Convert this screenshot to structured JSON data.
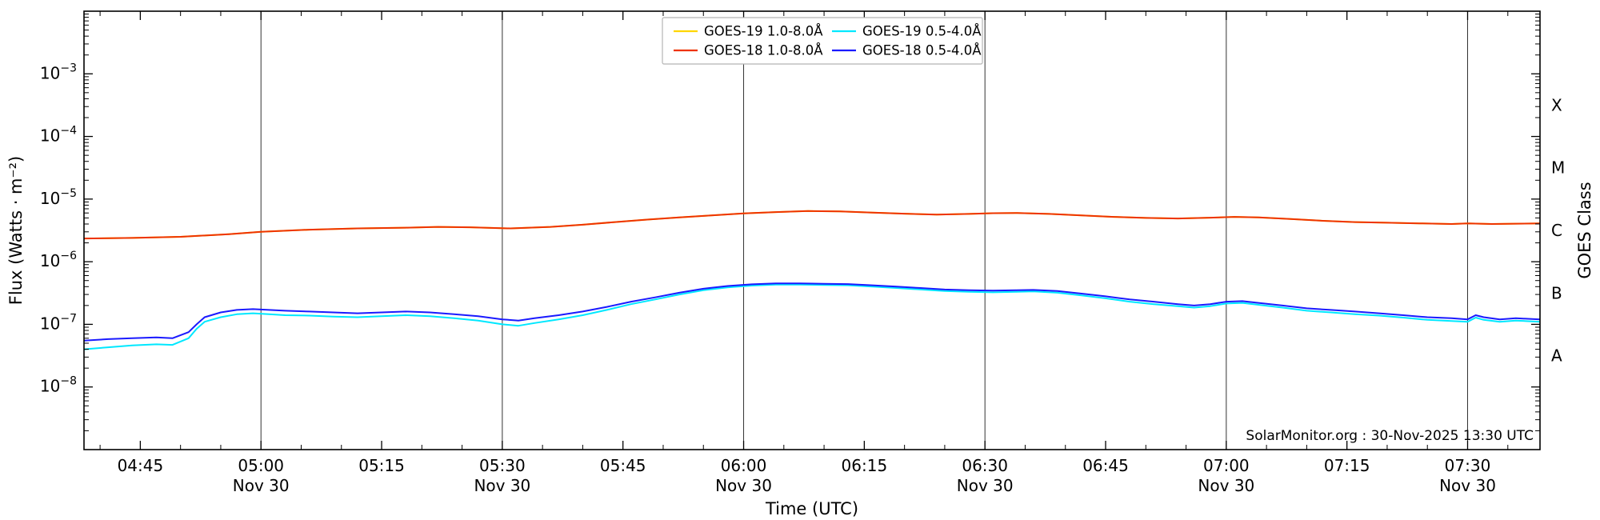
{
  "chart_data": {
    "type": "line",
    "title": "",
    "xlabel": "Time (UTC)",
    "ylabel": "Flux (Watts · m⁻²)",
    "ylabel_right": "GOES Class",
    "annotation": "SolarMonitor.org : 30-Nov-2025 13:30 UTC",
    "x_unit": "minutes since midnight UTC on 30-Nov-2025",
    "xlim": [
      278,
      459
    ],
    "ylog10_lim": [
      -9,
      -2
    ],
    "x_minor_step": 5,
    "x_major_ticks": [
      {
        "t": 285,
        "label": "04:45",
        "date": ""
      },
      {
        "t": 300,
        "label": "05:00",
        "date": "Nov 30"
      },
      {
        "t": 315,
        "label": "05:15",
        "date": ""
      },
      {
        "t": 330,
        "label": "05:30",
        "date": "Nov 30"
      },
      {
        "t": 345,
        "label": "05:45",
        "date": ""
      },
      {
        "t": 360,
        "label": "06:00",
        "date": "Nov 30"
      },
      {
        "t": 375,
        "label": "06:15",
        "date": ""
      },
      {
        "t": 390,
        "label": "06:30",
        "date": "Nov 30"
      },
      {
        "t": 405,
        "label": "06:45",
        "date": ""
      },
      {
        "t": 420,
        "label": "07:00",
        "date": "Nov 30"
      },
      {
        "t": 435,
        "label": "07:15",
        "date": ""
      },
      {
        "t": 450,
        "label": "07:30",
        "date": "Nov 30"
      }
    ],
    "y_major_ticks": [
      {
        "exp": -8,
        "label": "10⁻⁸"
      },
      {
        "exp": -7,
        "label": "10⁻⁷"
      },
      {
        "exp": -6,
        "label": "10⁻⁶"
      },
      {
        "exp": -5,
        "label": "10⁻⁵"
      },
      {
        "exp": -4,
        "label": "10⁻⁴"
      },
      {
        "exp": -3,
        "label": "10⁻³"
      }
    ],
    "goes_class_labels": [
      {
        "label": "A",
        "log10_flux": -7.5
      },
      {
        "label": "B",
        "log10_flux": -6.5
      },
      {
        "label": "C",
        "log10_flux": -5.5
      },
      {
        "label": "M",
        "log10_flux": -4.5
      },
      {
        "label": "X",
        "log10_flux": -3.5
      }
    ],
    "legend": {
      "entries": [
        {
          "label": "GOES-19 1.0-8.0Å",
          "color": "#ffd600"
        },
        {
          "label": "GOES-18 1.0-8.0Å",
          "color": "#ee3300"
        },
        {
          "label": "GOES-19 0.5-4.0Å",
          "color": "#00e8ff"
        },
        {
          "label": "GOES-18 0.5-4.0Å",
          "color": "#1a1aff"
        }
      ]
    },
    "series": [
      {
        "name": "GOES-19 1.0-8.0Å",
        "color": "#ffd600",
        "points_same_as": 1,
        "note": "hidden beneath GOES-18 1.0-8.0Å trace"
      },
      {
        "name": "GOES-18 1.0-8.0Å",
        "color": "#ee3300",
        "points": [
          [
            278,
            2.35e-06
          ],
          [
            284,
            2.4e-06
          ],
          [
            290,
            2.5e-06
          ],
          [
            296,
            2.75e-06
          ],
          [
            300,
            3e-06
          ],
          [
            306,
            3.25e-06
          ],
          [
            312,
            3.4e-06
          ],
          [
            318,
            3.5e-06
          ],
          [
            322,
            3.6e-06
          ],
          [
            326,
            3.55e-06
          ],
          [
            331,
            3.4e-06
          ],
          [
            336,
            3.6e-06
          ],
          [
            340,
            3.9e-06
          ],
          [
            344,
            4.3e-06
          ],
          [
            348,
            4.7e-06
          ],
          [
            352,
            5.1e-06
          ],
          [
            356,
            5.5e-06
          ],
          [
            360,
            5.9e-06
          ],
          [
            364,
            6.2e-06
          ],
          [
            368,
            6.45e-06
          ],
          [
            372,
            6.35e-06
          ],
          [
            376,
            6.1e-06
          ],
          [
            380,
            5.85e-06
          ],
          [
            384,
            5.65e-06
          ],
          [
            388,
            5.8e-06
          ],
          [
            391,
            5.95e-06
          ],
          [
            394,
            6e-06
          ],
          [
            398,
            5.8e-06
          ],
          [
            402,
            5.5e-06
          ],
          [
            406,
            5.2e-06
          ],
          [
            410,
            5e-06
          ],
          [
            414,
            4.9e-06
          ],
          [
            418,
            5.05e-06
          ],
          [
            421,
            5.2e-06
          ],
          [
            424,
            5.1e-06
          ],
          [
            428,
            4.8e-06
          ],
          [
            432,
            4.5e-06
          ],
          [
            436,
            4.3e-06
          ],
          [
            440,
            4.2e-06
          ],
          [
            444,
            4.1e-06
          ],
          [
            448,
            4e-06
          ],
          [
            450,
            4.1e-06
          ],
          [
            453,
            4e-06
          ],
          [
            456,
            4.05e-06
          ],
          [
            459,
            4.1e-06
          ]
        ]
      },
      {
        "name": "GOES-19 0.5-4.0Å",
        "color": "#00e8ff",
        "points": [
          [
            278,
            4e-08
          ],
          [
            281,
            4.3e-08
          ],
          [
            284,
            4.6e-08
          ],
          [
            287,
            4.8e-08
          ],
          [
            289,
            4.7e-08
          ],
          [
            291,
            6e-08
          ],
          [
            292,
            8.5e-08
          ],
          [
            293,
            1.1e-07
          ],
          [
            295,
            1.3e-07
          ],
          [
            297,
            1.45e-07
          ],
          [
            299,
            1.5e-07
          ],
          [
            301,
            1.45e-07
          ],
          [
            303,
            1.4e-07
          ],
          [
            306,
            1.38e-07
          ],
          [
            309,
            1.33e-07
          ],
          [
            312,
            1.3e-07
          ],
          [
            315,
            1.35e-07
          ],
          [
            318,
            1.4e-07
          ],
          [
            321,
            1.35e-07
          ],
          [
            324,
            1.25e-07
          ],
          [
            327,
            1.15e-07
          ],
          [
            330,
            1e-07
          ],
          [
            332,
            9.5e-08
          ],
          [
            334,
            1.05e-07
          ],
          [
            337,
            1.2e-07
          ],
          [
            340,
            1.4e-07
          ],
          [
            343,
            1.7e-07
          ],
          [
            346,
            2.1e-07
          ],
          [
            349,
            2.5e-07
          ],
          [
            352,
            3e-07
          ],
          [
            355,
            3.5e-07
          ],
          [
            358,
            3.9e-07
          ],
          [
            361,
            4.15e-07
          ],
          [
            364,
            4.3e-07
          ],
          [
            367,
            4.3e-07
          ],
          [
            370,
            4.25e-07
          ],
          [
            373,
            4.2e-07
          ],
          [
            376,
            4e-07
          ],
          [
            379,
            3.8e-07
          ],
          [
            382,
            3.6e-07
          ],
          [
            385,
            3.4e-07
          ],
          [
            388,
            3.3e-07
          ],
          [
            391,
            3.25e-07
          ],
          [
            394,
            3.3e-07
          ],
          [
            396,
            3.35e-07
          ],
          [
            399,
            3.2e-07
          ],
          [
            402,
            2.9e-07
          ],
          [
            405,
            2.6e-07
          ],
          [
            408,
            2.3e-07
          ],
          [
            411,
            2.1e-07
          ],
          [
            414,
            1.95e-07
          ],
          [
            416,
            1.85e-07
          ],
          [
            418,
            1.95e-07
          ],
          [
            420,
            2.15e-07
          ],
          [
            422,
            2.2e-07
          ],
          [
            424,
            2.05e-07
          ],
          [
            427,
            1.85e-07
          ],
          [
            430,
            1.65e-07
          ],
          [
            433,
            1.55e-07
          ],
          [
            436,
            1.45e-07
          ],
          [
            439,
            1.38e-07
          ],
          [
            442,
            1.28e-07
          ],
          [
            445,
            1.18e-07
          ],
          [
            448,
            1.13e-07
          ],
          [
            450,
            1.1e-07
          ],
          [
            451,
            1.28e-07
          ],
          [
            452,
            1.18e-07
          ],
          [
            454,
            1.1e-07
          ],
          [
            456,
            1.15e-07
          ],
          [
            459,
            1.1e-07
          ]
        ]
      },
      {
        "name": "GOES-18 0.5-4.0Å",
        "color": "#1a1aff",
        "points": [
          [
            278,
            5.5e-08
          ],
          [
            281,
            5.8e-08
          ],
          [
            284,
            6e-08
          ],
          [
            287,
            6.2e-08
          ],
          [
            289,
            6e-08
          ],
          [
            291,
            7.5e-08
          ],
          [
            292,
            1e-07
          ],
          [
            293,
            1.3e-07
          ],
          [
            295,
            1.55e-07
          ],
          [
            297,
            1.7e-07
          ],
          [
            299,
            1.75e-07
          ],
          [
            301,
            1.7e-07
          ],
          [
            303,
            1.65e-07
          ],
          [
            306,
            1.6e-07
          ],
          [
            309,
            1.55e-07
          ],
          [
            312,
            1.5e-07
          ],
          [
            315,
            1.55e-07
          ],
          [
            318,
            1.6e-07
          ],
          [
            321,
            1.55e-07
          ],
          [
            324,
            1.45e-07
          ],
          [
            327,
            1.35e-07
          ],
          [
            330,
            1.2e-07
          ],
          [
            332,
            1.15e-07
          ],
          [
            334,
            1.25e-07
          ],
          [
            337,
            1.4e-07
          ],
          [
            340,
            1.6e-07
          ],
          [
            343,
            1.9e-07
          ],
          [
            346,
            2.3e-07
          ],
          [
            349,
            2.7e-07
          ],
          [
            352,
            3.2e-07
          ],
          [
            355,
            3.7e-07
          ],
          [
            358,
            4.1e-07
          ],
          [
            361,
            4.35e-07
          ],
          [
            364,
            4.5e-07
          ],
          [
            367,
            4.5e-07
          ],
          [
            370,
            4.45e-07
          ],
          [
            373,
            4.4e-07
          ],
          [
            376,
            4.2e-07
          ],
          [
            379,
            4e-07
          ],
          [
            382,
            3.8e-07
          ],
          [
            385,
            3.6e-07
          ],
          [
            388,
            3.5e-07
          ],
          [
            391,
            3.45e-07
          ],
          [
            394,
            3.5e-07
          ],
          [
            396,
            3.55e-07
          ],
          [
            399,
            3.4e-07
          ],
          [
            402,
            3.1e-07
          ],
          [
            405,
            2.8e-07
          ],
          [
            408,
            2.5e-07
          ],
          [
            411,
            2.3e-07
          ],
          [
            414,
            2.1e-07
          ],
          [
            416,
            2e-07
          ],
          [
            418,
            2.1e-07
          ],
          [
            420,
            2.3e-07
          ],
          [
            422,
            2.35e-07
          ],
          [
            424,
            2.2e-07
          ],
          [
            427,
            2e-07
          ],
          [
            430,
            1.8e-07
          ],
          [
            433,
            1.7e-07
          ],
          [
            436,
            1.6e-07
          ],
          [
            439,
            1.5e-07
          ],
          [
            442,
            1.4e-07
          ],
          [
            445,
            1.3e-07
          ],
          [
            448,
            1.25e-07
          ],
          [
            450,
            1.2e-07
          ],
          [
            451,
            1.4e-07
          ],
          [
            452,
            1.3e-07
          ],
          [
            454,
            1.2e-07
          ],
          [
            456,
            1.25e-07
          ],
          [
            459,
            1.2e-07
          ]
        ]
      }
    ]
  }
}
